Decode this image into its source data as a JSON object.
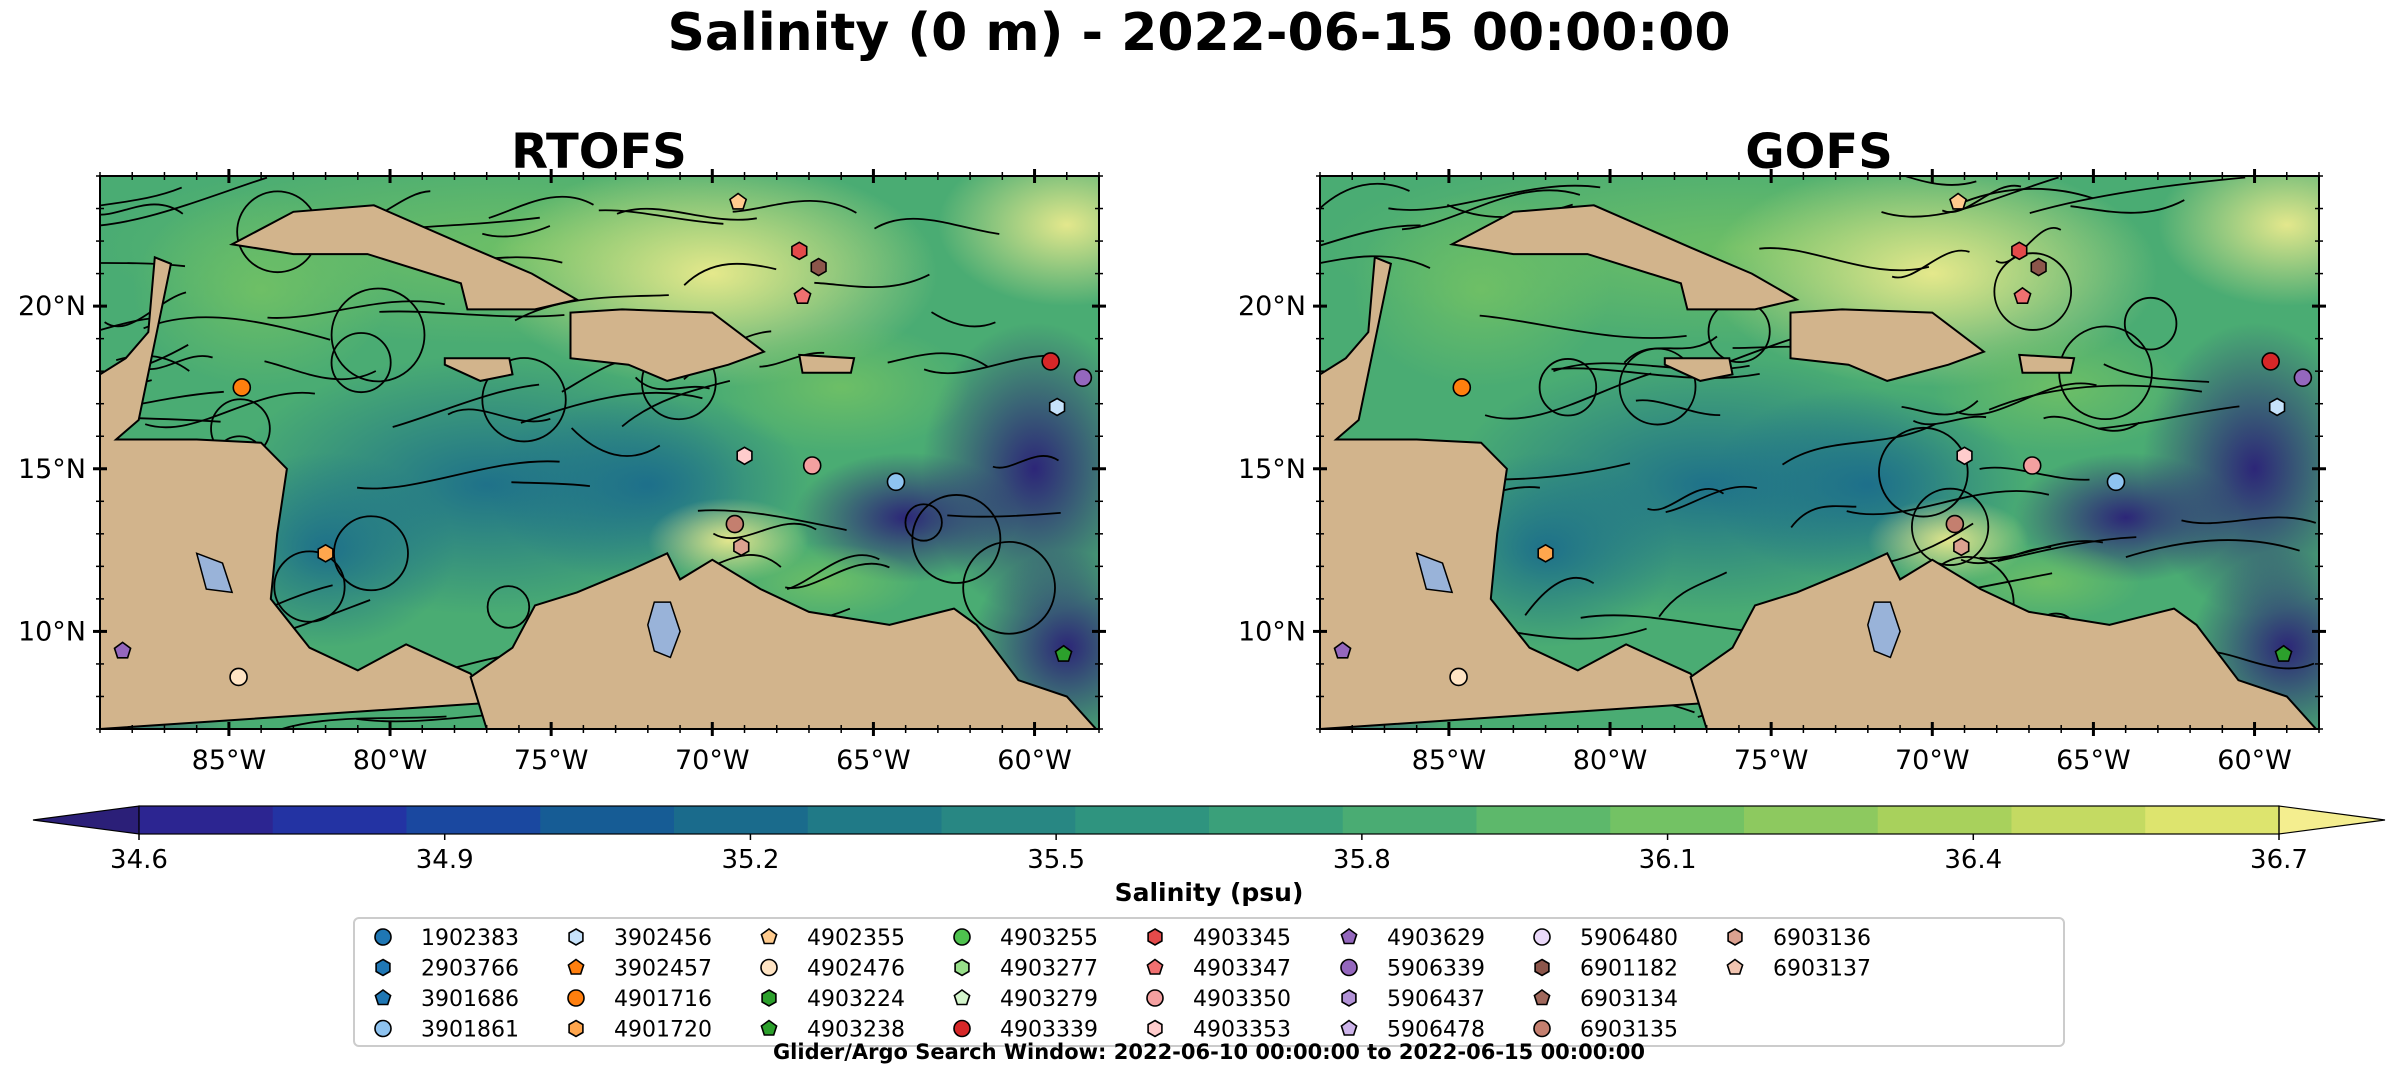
{
  "figure": {
    "title": "Salinity (0 m) - 2022-06-15 00:00:00",
    "footer": "Glider/Argo Search Window: 2022-06-10 00:00:00 to 2022-06-15 00:00:00"
  },
  "colors": {
    "land": "#d2b48c",
    "lakes_rivers": "#99b3d9",
    "colormap": [
      "#2b1f78",
      "#2c2591",
      "#2333a3",
      "#1a48a0",
      "#165c95",
      "#1a6b8c",
      "#207a87",
      "#288783",
      "#2f947f",
      "#3aa07a",
      "#4aac73",
      "#5db86b",
      "#73c264",
      "#8dc95f",
      "#a8d15c",
      "#c4da62",
      "#dde46e",
      "#f4ee8f"
    ]
  },
  "chart_data": {
    "type": "heatmap",
    "variable": "Salinity (0 m)",
    "time": "2022-06-15 00:00:00",
    "panels": [
      {
        "title": "RTOFS",
        "field_image": "salinity with surface-current streamlines",
        "coastline": true
      },
      {
        "title": "GOFS",
        "field_image": "salinity with surface-current streamlines",
        "coastline": true
      }
    ],
    "map_extent": {
      "lon": [
        -89,
        -58
      ],
      "lat": [
        7,
        24
      ]
    },
    "x_ticks": [
      {
        "value": -85,
        "label": "85°W"
      },
      {
        "value": -80,
        "label": "80°W"
      },
      {
        "value": -75,
        "label": "75°W"
      },
      {
        "value": -70,
        "label": "70°W"
      },
      {
        "value": -65,
        "label": "65°W"
      },
      {
        "value": -60,
        "label": "60°W"
      }
    ],
    "y_ticks": [
      {
        "value": 10,
        "label": "10°N"
      },
      {
        "value": 15,
        "label": "15°N"
      },
      {
        "value": 20,
        "label": "20°N"
      }
    ],
    "colorbar": {
      "label": "Salinity (psu)",
      "range": [
        34.6,
        36.7
      ],
      "extend": "both",
      "tick_labels": [
        "34.6",
        "34.9",
        "35.2",
        "35.5",
        "35.8",
        "36.1",
        "36.4",
        "36.7"
      ]
    },
    "legend": {
      "placement": "bottom-center",
      "columns": 9,
      "entries": [
        {
          "name": "1902383",
          "marker": "circle",
          "color": "#1f77b4",
          "lon": null,
          "lat": null
        },
        {
          "name": "2903766",
          "marker": "hexagon",
          "color": "#1f77b4",
          "lon": null,
          "lat": null
        },
        {
          "name": "3901686",
          "marker": "pentagon",
          "color": "#1f77b4",
          "lon": null,
          "lat": null
        },
        {
          "name": "3901861",
          "marker": "circle",
          "color": "#8ec3f0",
          "lon": -64.3,
          "lat": 14.6
        },
        {
          "name": "3902456",
          "marker": "hexagon",
          "color": "#c6e2fb",
          "lon": -59.3,
          "lat": 16.9
        },
        {
          "name": "3902457",
          "marker": "pentagon",
          "color": "#ff7f0e",
          "lon": null,
          "lat": null
        },
        {
          "name": "4901716",
          "marker": "circle",
          "color": "#ff7f0e",
          "lon": -84.6,
          "lat": 17.5
        },
        {
          "name": "4901720",
          "marker": "hexagon",
          "color": "#ffa64d",
          "lon": -82.0,
          "lat": 12.4
        },
        {
          "name": "4902355",
          "marker": "pentagon",
          "color": "#ffcb8e",
          "lon": -69.2,
          "lat": 23.2
        },
        {
          "name": "4902476",
          "marker": "circle",
          "color": "#ffe4c4",
          "lon": -84.7,
          "lat": 8.6
        },
        {
          "name": "4903224",
          "marker": "hexagon",
          "color": "#2ca02c",
          "lon": null,
          "lat": null
        },
        {
          "name": "4903238",
          "marker": "pentagon",
          "color": "#2ca02c",
          "lon": -59.1,
          "lat": 9.3
        },
        {
          "name": "4903255",
          "marker": "circle",
          "color": "#4ec24e",
          "lon": null,
          "lat": null
        },
        {
          "name": "4903277",
          "marker": "hexagon",
          "color": "#98df8a",
          "lon": null,
          "lat": null
        },
        {
          "name": "4903279",
          "marker": "pentagon",
          "color": "#d4f5cc",
          "lon": null,
          "lat": null
        },
        {
          "name": "4903339",
          "marker": "circle",
          "color": "#d62728",
          "lon": -59.5,
          "lat": 18.3
        },
        {
          "name": "4903345",
          "marker": "hexagon",
          "color": "#e34a4a",
          "lon": -67.3,
          "lat": 21.7
        },
        {
          "name": "4903347",
          "marker": "pentagon",
          "color": "#f07070",
          "lon": -67.2,
          "lat": 20.3
        },
        {
          "name": "4903350",
          "marker": "circle",
          "color": "#f4a0a0",
          "lon": -66.9,
          "lat": 15.1
        },
        {
          "name": "4903353",
          "marker": "hexagon",
          "color": "#ffcccc",
          "lon": -69.0,
          "lat": 15.4
        },
        {
          "name": "4903629",
          "marker": "pentagon",
          "color": "#9467bd",
          "lon": -88.3,
          "lat": 9.4
        },
        {
          "name": "5906339",
          "marker": "circle",
          "color": "#9467bd",
          "lon": -58.5,
          "lat": 17.8
        },
        {
          "name": "5906437",
          "marker": "hexagon",
          "color": "#b292d6",
          "lon": null,
          "lat": null
        },
        {
          "name": "5906478",
          "marker": "pentagon",
          "color": "#cdb4ea",
          "lon": null,
          "lat": null
        },
        {
          "name": "5906480",
          "marker": "circle",
          "color": "#ead8f9",
          "lon": null,
          "lat": null
        },
        {
          "name": "6901182",
          "marker": "hexagon",
          "color": "#8c564b",
          "lon": -66.7,
          "lat": 21.2
        },
        {
          "name": "6903134",
          "marker": "pentagon",
          "color": "#a0685c",
          "lon": null,
          "lat": null
        },
        {
          "name": "6903135",
          "marker": "circle",
          "color": "#c47f6f",
          "lon": -69.3,
          "lat": 13.3
        },
        {
          "name": "6903136",
          "marker": "hexagon",
          "color": "#dba190",
          "lon": -69.1,
          "lat": 12.6
        },
        {
          "name": "6903137",
          "marker": "pentagon",
          "color": "#f0c4b0",
          "lon": null,
          "lat": null
        }
      ]
    }
  }
}
